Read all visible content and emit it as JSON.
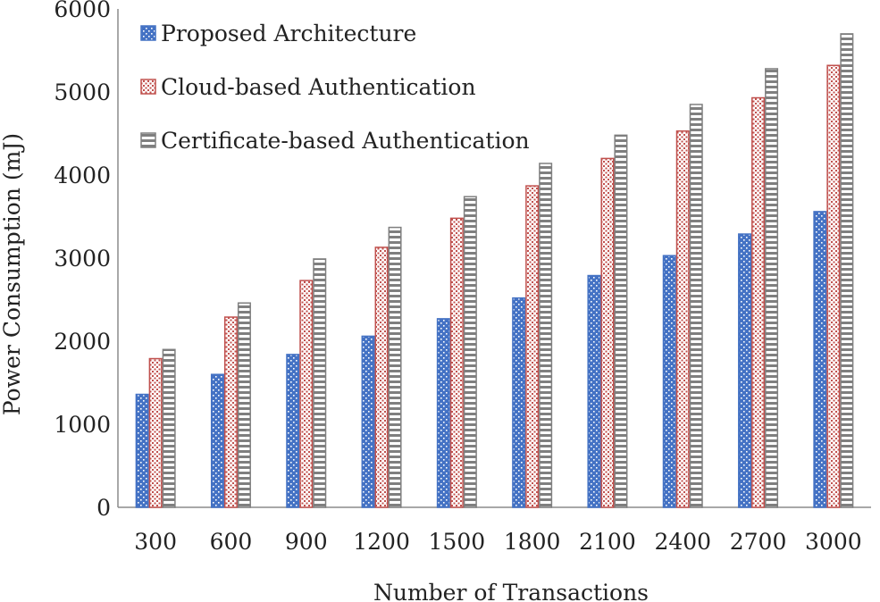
{
  "chart_data": {
    "type": "bar",
    "title": "",
    "xlabel": "Number of Transactions",
    "ylabel": "Power Consumption (mJ)",
    "ylim": [
      0,
      6000
    ],
    "yticks": [
      0,
      1000,
      2000,
      3000,
      4000,
      5000,
      6000
    ],
    "categories": [
      "300",
      "600",
      "900",
      "1200",
      "1500",
      "1800",
      "2100",
      "2400",
      "2700",
      "3000"
    ],
    "series": [
      {
        "name": "Proposed Architecture",
        "color": "#4472C4",
        "pattern": "dotted",
        "values": [
          1360,
          1600,
          1840,
          2060,
          2270,
          2520,
          2790,
          3030,
          3290,
          3560
        ]
      },
      {
        "name": "Cloud-based Authentication",
        "color": "#C0504D",
        "pattern": "dotted-grid",
        "values": [
          1790,
          2290,
          2730,
          3130,
          3480,
          3870,
          4200,
          4530,
          4930,
          5320
        ]
      },
      {
        "name": "Certificate-based Authentication",
        "color": "#7F7F7F",
        "pattern": "horizontal-stripes",
        "values": [
          1900,
          2460,
          2990,
          3370,
          3740,
          4140,
          4480,
          4850,
          5280,
          5700
        ]
      }
    ],
    "legend_position": "top-left",
    "grid": false
  }
}
